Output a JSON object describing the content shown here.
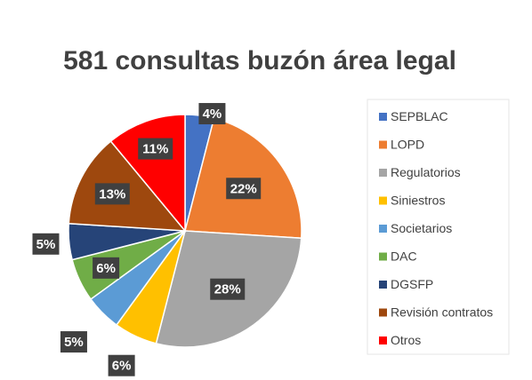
{
  "chart_data": {
    "type": "pie",
    "title": "581 consultas buzón área legal",
    "categories": [
      "SEPBLAC",
      "LOPD",
      "Regulatorios",
      "Siniestros",
      "Societarios",
      "DAC",
      "DGSFP",
      "Revisión contratos",
      "Otros"
    ],
    "values": [
      4,
      22,
      28,
      6,
      5,
      6,
      5,
      13,
      11
    ],
    "data_labels": [
      "4%",
      "22%",
      "28%",
      "6%",
      "5%",
      "6%",
      "5%",
      "13%",
      "11%"
    ],
    "colors": [
      "#4472C4",
      "#ED7D31",
      "#A5A5A5",
      "#FFC000",
      "#5B9BD5",
      "#70AD47",
      "#264478",
      "#9E480E",
      "#FF0000"
    ],
    "legend_position": "right"
  }
}
